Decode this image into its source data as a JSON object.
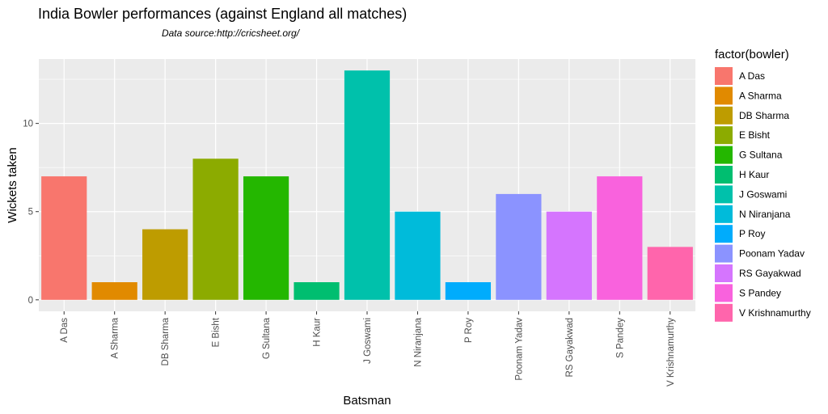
{
  "chart_data": {
    "type": "bar",
    "title": "India Bowler performances (against England all matches)",
    "subtitle": "Data source:http://cricsheet.org/",
    "xlabel": "Batsman",
    "ylabel": "Wickets taken",
    "categories": [
      "A Das",
      "A Sharma",
      "DB Sharma",
      "E Bisht",
      "G Sultana",
      "H Kaur",
      "J Goswami",
      "N Niranjana",
      "P Roy",
      "Poonam Yadav",
      "RS Gayakwad",
      "S Pandey",
      "V Krishnamurthy"
    ],
    "values": [
      7,
      1,
      4,
      8,
      7,
      1,
      13,
      5,
      1,
      6,
      5,
      7,
      3
    ],
    "colors": [
      "#F8766D",
      "#E18A00",
      "#BE9C00",
      "#8CAB00",
      "#24B700",
      "#00BE70",
      "#00C1AB",
      "#00BBDA",
      "#00ACFC",
      "#8B93FF",
      "#D575FE",
      "#F962DD",
      "#FF65AC"
    ],
    "ylim": [
      -0.65,
      13.65
    ],
    "yticks": [
      0,
      5,
      10
    ],
    "legend": {
      "title": "factor(bowler)",
      "position": "right"
    },
    "panel_background": "#EBEBEB",
    "grid": true
  }
}
